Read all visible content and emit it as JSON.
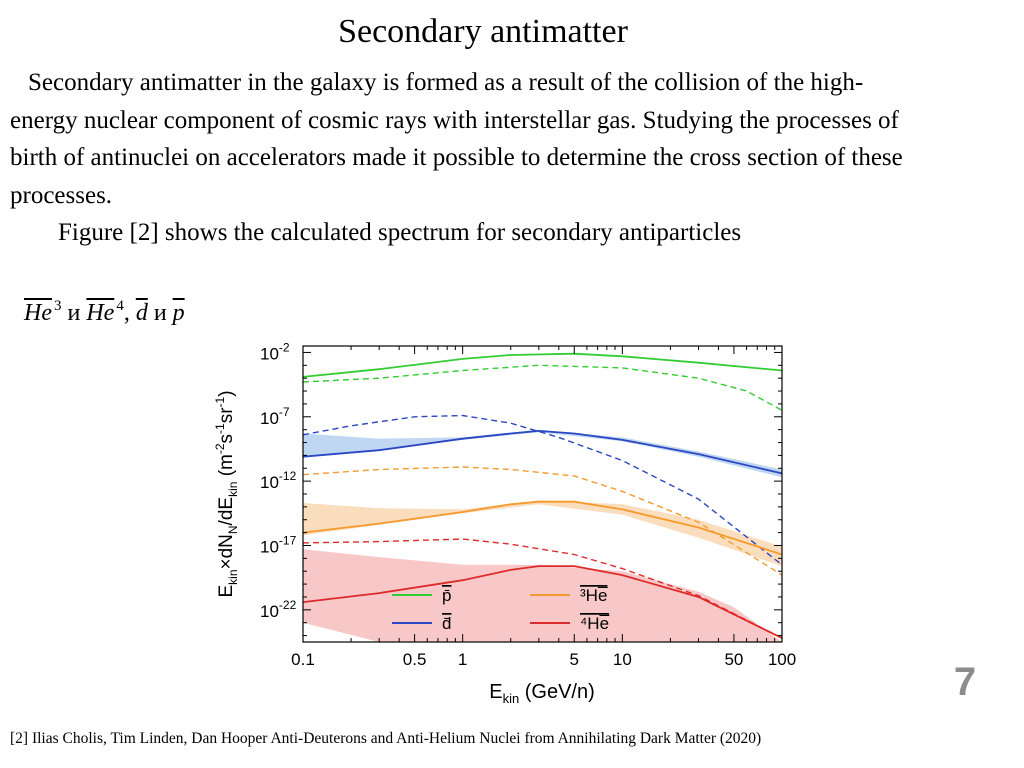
{
  "slide": {
    "title": "Secondary antimatter",
    "paragraph1": "Secondary antimatter in the galaxy is formed as a result of the collision of the high-energy nuclear component of cosmic rays with interstellar gas. Studying the processes of birth of antinuclei on accelerators made it possible to determine the cross section of these processes.",
    "paragraph2": "Figure [2] shows the calculated spectrum for secondary antiparticles",
    "particles": {
      "he": "He",
      "he3_mass": "3",
      "conj1": "и",
      "he4_mass": "4",
      "comma": ",",
      "d": "d",
      "conj2": "и",
      "p": "p"
    },
    "slide_number": "7",
    "reference": "[2] Ilias Cholis, Tim Linden, Dan Hooper Anti-Deuterons and Anti-Helium Nuclei from Annihilating Dark Matter (2020)"
  },
  "chart_data": {
    "type": "line",
    "x_scale": "log",
    "y_scale": "log",
    "xlim": [
      0.1,
      100
    ],
    "ylim_log10": [
      -24.5,
      -1.5
    ],
    "xlabel": "E_kin (GeV/n)",
    "ylabel": "E_kin×dN_N/dE_kin (m^-2 s^-1 sr^-1)",
    "x_ticks": [
      "0.1",
      "0.5",
      "1",
      "5",
      "10",
      "50",
      "100"
    ],
    "x_tick_values": [
      0.1,
      0.5,
      1,
      5,
      10,
      50,
      100
    ],
    "y_tick_labels": [
      "10",
      "10",
      "10",
      "10",
      "10"
    ],
    "y_tick_exponents": [
      "-2",
      "-7",
      "-12",
      "-17",
      "-22"
    ],
    "y_tick_values_log10": [
      -2,
      -7,
      -12,
      -17,
      -22
    ],
    "frame_color": "#000000",
    "series": [
      {
        "name": "p̄",
        "color": "#33cc33",
        "band_color": "#9fe59f",
        "solid_log10": [
          [
            0.1,
            -3.9
          ],
          [
            0.3,
            -3.3
          ],
          [
            1,
            -2.5
          ],
          [
            2,
            -2.2
          ],
          [
            5,
            -2.1
          ],
          [
            10,
            -2.3
          ],
          [
            30,
            -2.8
          ],
          [
            100,
            -3.4
          ]
        ],
        "dashed_log10": [
          [
            0.1,
            -4.3
          ],
          [
            0.3,
            -4.0
          ],
          [
            1,
            -3.4
          ],
          [
            3,
            -3.0
          ],
          [
            10,
            -3.2
          ],
          [
            30,
            -4.0
          ],
          [
            60,
            -5.0
          ],
          [
            100,
            -6.5
          ]
        ],
        "band_log10": []
      },
      {
        "name": "d̄",
        "color": "#2b47c2",
        "band_color": "#a9c9ef",
        "solid_log10": [
          [
            0.1,
            -10.1
          ],
          [
            0.3,
            -9.6
          ],
          [
            1,
            -8.7
          ],
          [
            2,
            -8.3
          ],
          [
            3,
            -8.1
          ],
          [
            5,
            -8.3
          ],
          [
            10,
            -8.8
          ],
          [
            30,
            -9.9
          ],
          [
            100,
            -11.4
          ]
        ],
        "dashed_log10": [
          [
            0.1,
            -8.4
          ],
          [
            0.2,
            -7.7
          ],
          [
            0.5,
            -7.0
          ],
          [
            1,
            -6.9
          ],
          [
            2,
            -7.5
          ],
          [
            4,
            -8.6
          ],
          [
            10,
            -10.4
          ],
          [
            30,
            -13.4
          ],
          [
            100,
            -18.5
          ]
        ],
        "band_log10": [
          [
            0.1,
            -8.3,
            -10.1
          ],
          [
            0.3,
            -8.7,
            -9.6
          ],
          [
            1,
            -8.6,
            -8.8
          ],
          [
            3,
            -8.0,
            -8.2
          ],
          [
            10,
            -8.6,
            -8.9
          ],
          [
            30,
            -9.7,
            -10.1
          ],
          [
            100,
            -11.1,
            -11.7
          ]
        ]
      },
      {
        "name": "³He̅",
        "color": "#f59a2e",
        "band_color": "#f8d2a6",
        "solid_log10": [
          [
            0.1,
            -16.0
          ],
          [
            0.3,
            -15.3
          ],
          [
            1,
            -14.4
          ],
          [
            2,
            -13.8
          ],
          [
            3,
            -13.6
          ],
          [
            5,
            -13.6
          ],
          [
            10,
            -14.2
          ],
          [
            30,
            -15.6
          ],
          [
            100,
            -17.7
          ]
        ],
        "dashed_log10": [
          [
            0.1,
            -11.5
          ],
          [
            0.3,
            -11.1
          ],
          [
            1,
            -10.9
          ],
          [
            2,
            -11.1
          ],
          [
            5,
            -11.6
          ],
          [
            10,
            -12.8
          ],
          [
            30,
            -15.2
          ],
          [
            100,
            -19.3
          ]
        ],
        "band_log10": [
          [
            0.1,
            -13.7,
            -16.2
          ],
          [
            0.3,
            -14.1,
            -15.4
          ],
          [
            1,
            -14.2,
            -14.5
          ],
          [
            3,
            -13.5,
            -13.8
          ],
          [
            10,
            -13.8,
            -14.6
          ],
          [
            30,
            -15.0,
            -16.4
          ],
          [
            100,
            -17.1,
            -18.6
          ]
        ]
      },
      {
        "name": "⁴He̅",
        "color": "#dd2a2a",
        "band_color": "#f5b5b5",
        "solid_log10": [
          [
            0.1,
            -21.4
          ],
          [
            0.3,
            -20.7
          ],
          [
            1,
            -19.7
          ],
          [
            2,
            -18.9
          ],
          [
            3,
            -18.6
          ],
          [
            5,
            -18.6
          ],
          [
            10,
            -19.3
          ],
          [
            30,
            -21.0
          ],
          [
            100,
            -24.2
          ]
        ],
        "dashed_log10": [
          [
            0.1,
            -16.8
          ],
          [
            0.3,
            -16.7
          ],
          [
            1,
            -16.5
          ],
          [
            2,
            -16.9
          ],
          [
            5,
            -17.7
          ],
          [
            10,
            -18.8
          ],
          [
            30,
            -20.9
          ],
          [
            100,
            -24.2
          ]
        ],
        "band_log10": [
          [
            0.1,
            -17.3,
            -23.0
          ],
          [
            0.3,
            -17.9,
            -24.5
          ],
          [
            1,
            -18.5,
            -24.5
          ],
          [
            3,
            -18.5,
            -24.5
          ],
          [
            10,
            -19.0,
            -24.5
          ],
          [
            30,
            -20.6,
            -24.5
          ],
          [
            50,
            -21.8,
            -24.5
          ],
          [
            100,
            -24.5,
            -24.5
          ]
        ]
      }
    ],
    "legend_position": "lower-center"
  }
}
